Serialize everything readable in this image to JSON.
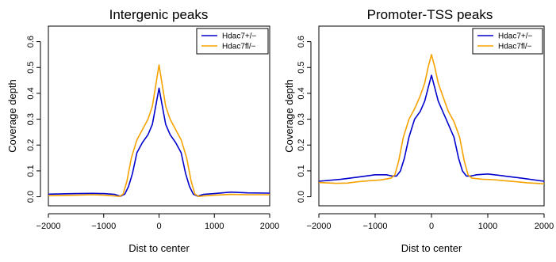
{
  "colors": {
    "series_0": "#0000cc",
    "series_1": "#f5a300"
  },
  "chart_data": [
    {
      "type": "line",
      "title": "Intergenic peaks",
      "xlabel": "Dist to center",
      "ylabel": "Coverage depth",
      "xlim": [
        -2000,
        2000
      ],
      "ylim": [
        -0.035,
        0.66
      ],
      "xticks": [
        -2000,
        -1000,
        0,
        1000,
        2000
      ],
      "xtick_labels": [
        "−2000",
        "−1000",
        "0",
        "1000",
        "2000"
      ],
      "yticks": [
        0.0,
        0.1,
        0.2,
        0.3,
        0.4,
        0.5,
        0.6
      ],
      "ytick_labels": [
        "0.0",
        "0.1",
        "0.2",
        "0.3",
        "0.4",
        "0.5",
        "0.6"
      ],
      "legend_position": "top-right",
      "series": [
        {
          "name": "Hdac7+/−",
          "color": "#0000cc",
          "x": [
            -2000,
            -1500,
            -1200,
            -1000,
            -800,
            -700,
            -620,
            -550,
            -480,
            -400,
            -300,
            -200,
            -120,
            -60,
            0,
            60,
            120,
            200,
            300,
            400,
            480,
            550,
            620,
            700,
            800,
            1000,
            1300,
            1600,
            2000
          ],
          "y": [
            0.01,
            0.012,
            0.013,
            0.012,
            0.009,
            0.002,
            0.01,
            0.04,
            0.09,
            0.17,
            0.21,
            0.24,
            0.28,
            0.35,
            0.42,
            0.35,
            0.28,
            0.24,
            0.21,
            0.17,
            0.09,
            0.04,
            0.01,
            0.002,
            0.009,
            0.012,
            0.018,
            0.015,
            0.014
          ]
        },
        {
          "name": "Hdac7fl/−",
          "color": "#f5a300",
          "x": [
            -2000,
            -1500,
            -1200,
            -1000,
            -800,
            -720,
            -650,
            -580,
            -500,
            -400,
            -300,
            -200,
            -120,
            -60,
            0,
            60,
            120,
            200,
            300,
            400,
            500,
            580,
            650,
            720,
            800,
            1000,
            1300,
            1600,
            2000
          ],
          "y": [
            0.004,
            0.006,
            0.008,
            0.006,
            0.003,
            0.001,
            0.01,
            0.06,
            0.15,
            0.22,
            0.26,
            0.3,
            0.35,
            0.43,
            0.51,
            0.43,
            0.35,
            0.3,
            0.26,
            0.22,
            0.15,
            0.06,
            0.01,
            0.001,
            0.003,
            0.006,
            0.009,
            0.008,
            0.008
          ]
        }
      ]
    },
    {
      "type": "line",
      "title": "Promoter-TSS peaks",
      "xlabel": "Dist to center",
      "ylabel": "Coverage depth",
      "xlim": [
        -2000,
        2000
      ],
      "ylim": [
        -0.035,
        0.66
      ],
      "xticks": [
        -2000,
        -1000,
        0,
        1000,
        2000
      ],
      "xtick_labels": [
        "−2000",
        "−1000",
        "0",
        "1000",
        "2000"
      ],
      "yticks": [
        0.0,
        0.1,
        0.2,
        0.3,
        0.4,
        0.5,
        0.6
      ],
      "ytick_labels": [
        "0.0",
        "0.1",
        "0.2",
        "0.3",
        "0.4",
        "0.5",
        "0.6"
      ],
      "legend_position": "top-right",
      "series": [
        {
          "name": "Hdac7+/−",
          "color": "#0000cc",
          "x": [
            -2000,
            -1600,
            -1300,
            -1000,
            -800,
            -700,
            -620,
            -550,
            -480,
            -400,
            -300,
            -200,
            -120,
            -60,
            0,
            60,
            120,
            200,
            300,
            400,
            480,
            550,
            620,
            700,
            800,
            1000,
            1300,
            1600,
            2000
          ],
          "y": [
            0.06,
            0.068,
            0.076,
            0.085,
            0.085,
            0.08,
            0.08,
            0.1,
            0.15,
            0.23,
            0.3,
            0.33,
            0.37,
            0.42,
            0.47,
            0.42,
            0.37,
            0.33,
            0.28,
            0.23,
            0.15,
            0.1,
            0.08,
            0.08,
            0.085,
            0.088,
            0.08,
            0.072,
            0.06
          ]
        },
        {
          "name": "Hdac7fl/−",
          "color": "#f5a300",
          "x": [
            -2000,
            -1700,
            -1500,
            -1300,
            -1100,
            -900,
            -720,
            -650,
            -580,
            -500,
            -400,
            -300,
            -200,
            -120,
            -60,
            0,
            60,
            120,
            200,
            300,
            400,
            500,
            580,
            650,
            720,
            900,
            1100,
            1300,
            1500,
            1700,
            2000
          ],
          "y": [
            0.055,
            0.052,
            0.053,
            0.058,
            0.062,
            0.065,
            0.072,
            0.085,
            0.14,
            0.23,
            0.3,
            0.34,
            0.39,
            0.44,
            0.5,
            0.55,
            0.5,
            0.44,
            0.39,
            0.33,
            0.29,
            0.23,
            0.14,
            0.085,
            0.072,
            0.068,
            0.066,
            0.062,
            0.058,
            0.054,
            0.05
          ]
        }
      ]
    }
  ]
}
